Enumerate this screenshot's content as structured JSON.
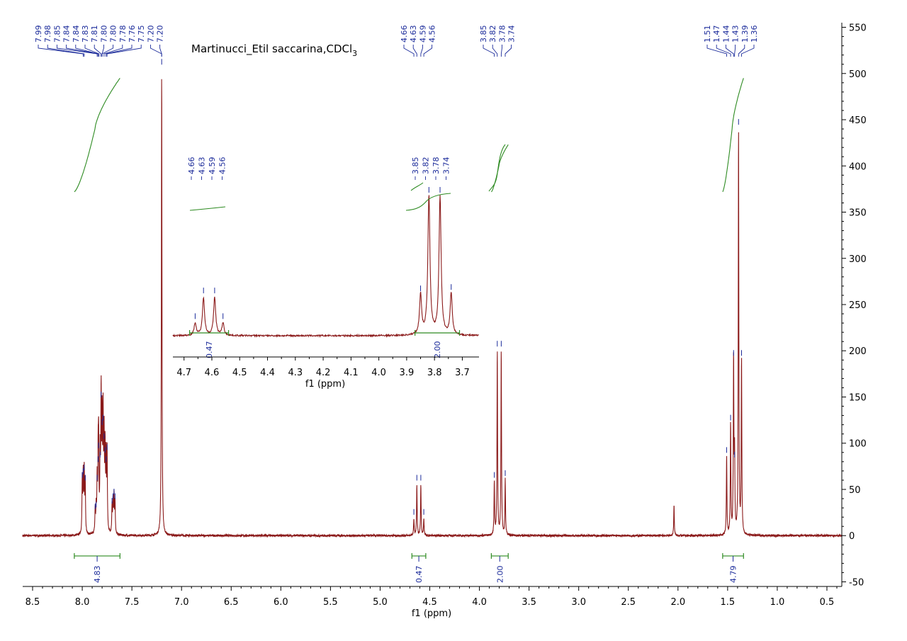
{
  "chart_data": {
    "type": "line",
    "title": "Martinucci_Etil saccarina,CDCl",
    "title_subscript": "3",
    "xlabel": "f1 (ppm)",
    "ylabel": "",
    "x_reversed": true,
    "xlim": [
      8.6,
      0.35
    ],
    "ylim": [
      -55,
      555
    ],
    "x_ticks": [
      "8.5",
      "8.0",
      "7.5",
      "7.0",
      "6.5",
      "6.0",
      "5.5",
      "5.0",
      "4.5",
      "4.0",
      "3.5",
      "3.0",
      "2.5",
      "2.0",
      "1.5",
      "1.0",
      "0.5"
    ],
    "x_tick_values": [
      8.5,
      8.0,
      7.5,
      7.0,
      6.5,
      6.0,
      5.5,
      5.0,
      4.5,
      4.0,
      3.5,
      3.0,
      2.5,
      2.0,
      1.5,
      1.0,
      0.5
    ],
    "y_ticks": [
      "550",
      "500",
      "450",
      "400",
      "350",
      "300",
      "250",
      "200",
      "150",
      "100",
      "50",
      "0",
      "-50"
    ],
    "y_tick_values": [
      550,
      500,
      450,
      400,
      350,
      300,
      250,
      200,
      150,
      100,
      50,
      0,
      -50
    ],
    "colors": {
      "spectrum": "#8b1a1a",
      "integral": "#2e8b22",
      "labels": "#1a2a9a",
      "axis": "#000000"
    },
    "peaks": [
      {
        "ppm": 8.0,
        "height": 58
      },
      {
        "ppm": 7.99,
        "height": 62
      },
      {
        "ppm": 7.98,
        "height": 66
      },
      {
        "ppm": 7.97,
        "height": 55
      },
      {
        "ppm": 7.87,
        "height": 24
      },
      {
        "ppm": 7.86,
        "height": 26
      },
      {
        "ppm": 7.85,
        "height": 55
      },
      {
        "ppm": 7.84,
        "height": 75
      },
      {
        "ppm": 7.835,
        "height": 90
      },
      {
        "ppm": 7.82,
        "height": 80
      },
      {
        "ppm": 7.81,
        "height": 145
      },
      {
        "ppm": 7.8,
        "height": 115
      },
      {
        "ppm": 7.79,
        "height": 120
      },
      {
        "ppm": 7.78,
        "height": 100
      },
      {
        "ppm": 7.77,
        "height": 85
      },
      {
        "ppm": 7.76,
        "height": 75
      },
      {
        "ppm": 7.75,
        "height": 88
      },
      {
        "ppm": 7.7,
        "height": 30
      },
      {
        "ppm": 7.69,
        "height": 35
      },
      {
        "ppm": 7.68,
        "height": 40
      },
      {
        "ppm": 7.67,
        "height": 35
      },
      {
        "ppm": 7.2,
        "height": 505
      },
      {
        "ppm": 4.66,
        "height": 18
      },
      {
        "ppm": 4.63,
        "height": 55
      },
      {
        "ppm": 4.59,
        "height": 55
      },
      {
        "ppm": 4.56,
        "height": 18
      },
      {
        "ppm": 3.85,
        "height": 58
      },
      {
        "ppm": 3.82,
        "height": 200
      },
      {
        "ppm": 3.78,
        "height": 200
      },
      {
        "ppm": 3.74,
        "height": 60
      },
      {
        "ppm": 2.04,
        "height": 33
      },
      {
        "ppm": 1.51,
        "height": 85
      },
      {
        "ppm": 1.47,
        "height": 120
      },
      {
        "ppm": 1.44,
        "height": 190
      },
      {
        "ppm": 1.43,
        "height": 80
      },
      {
        "ppm": 1.39,
        "height": 440
      },
      {
        "ppm": 1.36,
        "height": 190
      }
    ],
    "peak_label_groups": [
      {
        "labels": [
          "7.99",
          "7.98",
          "7.85",
          "7.84",
          "7.84",
          "7.83",
          "7.81",
          "7.80",
          "7.80",
          "7.78",
          "7.76",
          "7.75",
          "7.20",
          "7.20"
        ],
        "ppms": [
          7.99,
          7.98,
          7.85,
          7.84,
          7.84,
          7.83,
          7.81,
          7.8,
          7.8,
          7.78,
          7.76,
          7.75,
          7.2,
          7.2
        ]
      },
      {
        "labels": [
          "4.66",
          "4.63",
          "4.59",
          "4.56"
        ],
        "ppms": [
          4.66,
          4.63,
          4.59,
          4.56
        ]
      },
      {
        "labels": [
          "3.85",
          "3.82",
          "3.78",
          "3.74"
        ],
        "ppms": [
          3.85,
          3.82,
          3.78,
          3.74
        ]
      },
      {
        "labels": [
          "1.51",
          "1.47",
          "1.44",
          "1.43",
          "1.39",
          "1.36"
        ],
        "ppms": [
          1.51,
          1.47,
          1.44,
          1.43,
          1.39,
          1.36
        ]
      }
    ],
    "integrals": [
      {
        "from": 8.08,
        "to": 7.62,
        "value": "4.83",
        "curve_bottom": 372,
        "curve_top": 495
      },
      {
        "from": 4.68,
        "to": 4.54,
        "value": "0.47"
      },
      {
        "from": 3.88,
        "to": 3.71,
        "value": "2.00",
        "curve_bottom": 372,
        "curve_top": 423
      },
      {
        "from": 1.55,
        "to": 1.34,
        "value": "4.79",
        "curve_bottom": 372,
        "curve_top": 495
      }
    ],
    "inset": {
      "xlim": [
        4.74,
        3.64
      ],
      "xlabel": "f1 (ppm)",
      "x_ticks": [
        "4.7",
        "4.6",
        "4.5",
        "4.4",
        "4.3",
        "4.2",
        "4.1",
        "4.0",
        "3.9",
        "3.8",
        "3.7"
      ],
      "x_tick_values": [
        4.7,
        4.6,
        4.5,
        4.4,
        4.3,
        4.2,
        4.1,
        4.0,
        3.9,
        3.8,
        3.7
      ],
      "peak_label_groups": [
        {
          "labels": [
            "4.66",
            "4.63",
            "4.59",
            "4.56"
          ],
          "ppms": [
            4.66,
            4.63,
            4.59,
            4.56
          ]
        },
        {
          "labels": [
            "3.85",
            "3.82",
            "3.78",
            "3.74"
          ],
          "ppms": [
            3.85,
            3.82,
            3.78,
            3.74
          ]
        }
      ],
      "integrals": [
        {
          "from": 4.68,
          "to": 4.54,
          "value": "0.47"
        },
        {
          "from": 3.87,
          "to": 3.71,
          "value": "2.00"
        }
      ]
    }
  }
}
